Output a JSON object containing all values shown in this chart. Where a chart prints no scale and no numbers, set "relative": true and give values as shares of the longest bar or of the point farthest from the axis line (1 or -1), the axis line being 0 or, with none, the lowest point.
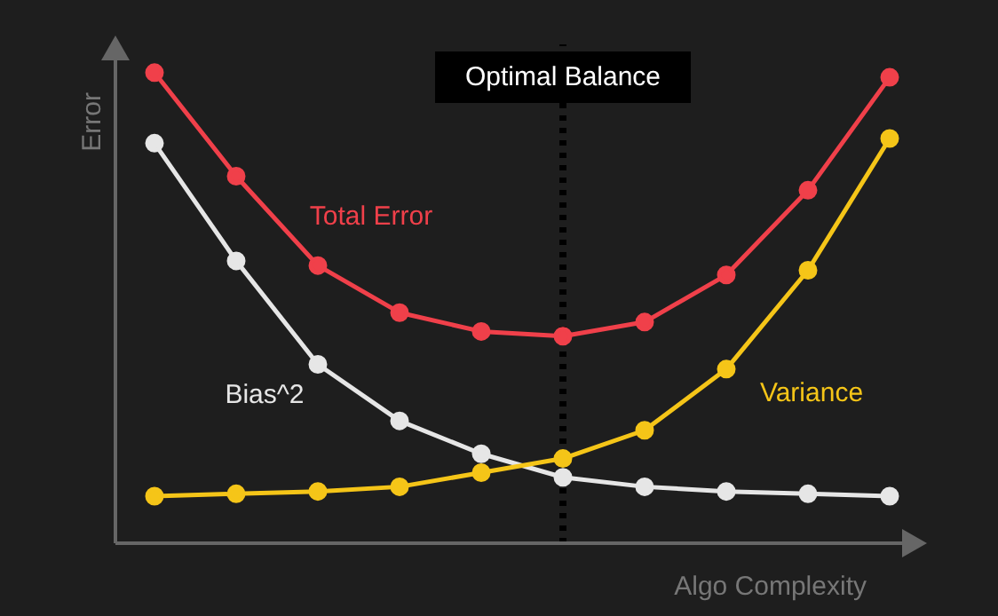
{
  "chart_data": {
    "type": "line",
    "relative": true,
    "xlabel": "Algo Complexity",
    "ylabel": "Error",
    "categories": [
      null,
      null,
      null,
      null,
      null,
      null,
      null,
      null,
      null,
      null
    ],
    "series": [
      {
        "name": "Total Error",
        "color": "#f0404a",
        "values": [
          1.0,
          0.78,
          0.59,
          0.49,
          0.45,
          0.44,
          0.47,
          0.57,
          0.75,
          0.99
        ]
      },
      {
        "name": "Bias^2",
        "color": "#e6e6e6",
        "values": [
          0.85,
          0.6,
          0.38,
          0.26,
          0.19,
          0.14,
          0.12,
          0.11,
          0.105,
          0.1
        ]
      },
      {
        "name": "Variance",
        "color": "#f5c518",
        "values": [
          0.1,
          0.105,
          0.11,
          0.12,
          0.15,
          0.18,
          0.24,
          0.37,
          0.58,
          0.86
        ]
      }
    ],
    "annotations": [
      "Optimal Balance"
    ],
    "marker": "circle",
    "line_style": "solid",
    "grid": false,
    "legend": false
  }
}
